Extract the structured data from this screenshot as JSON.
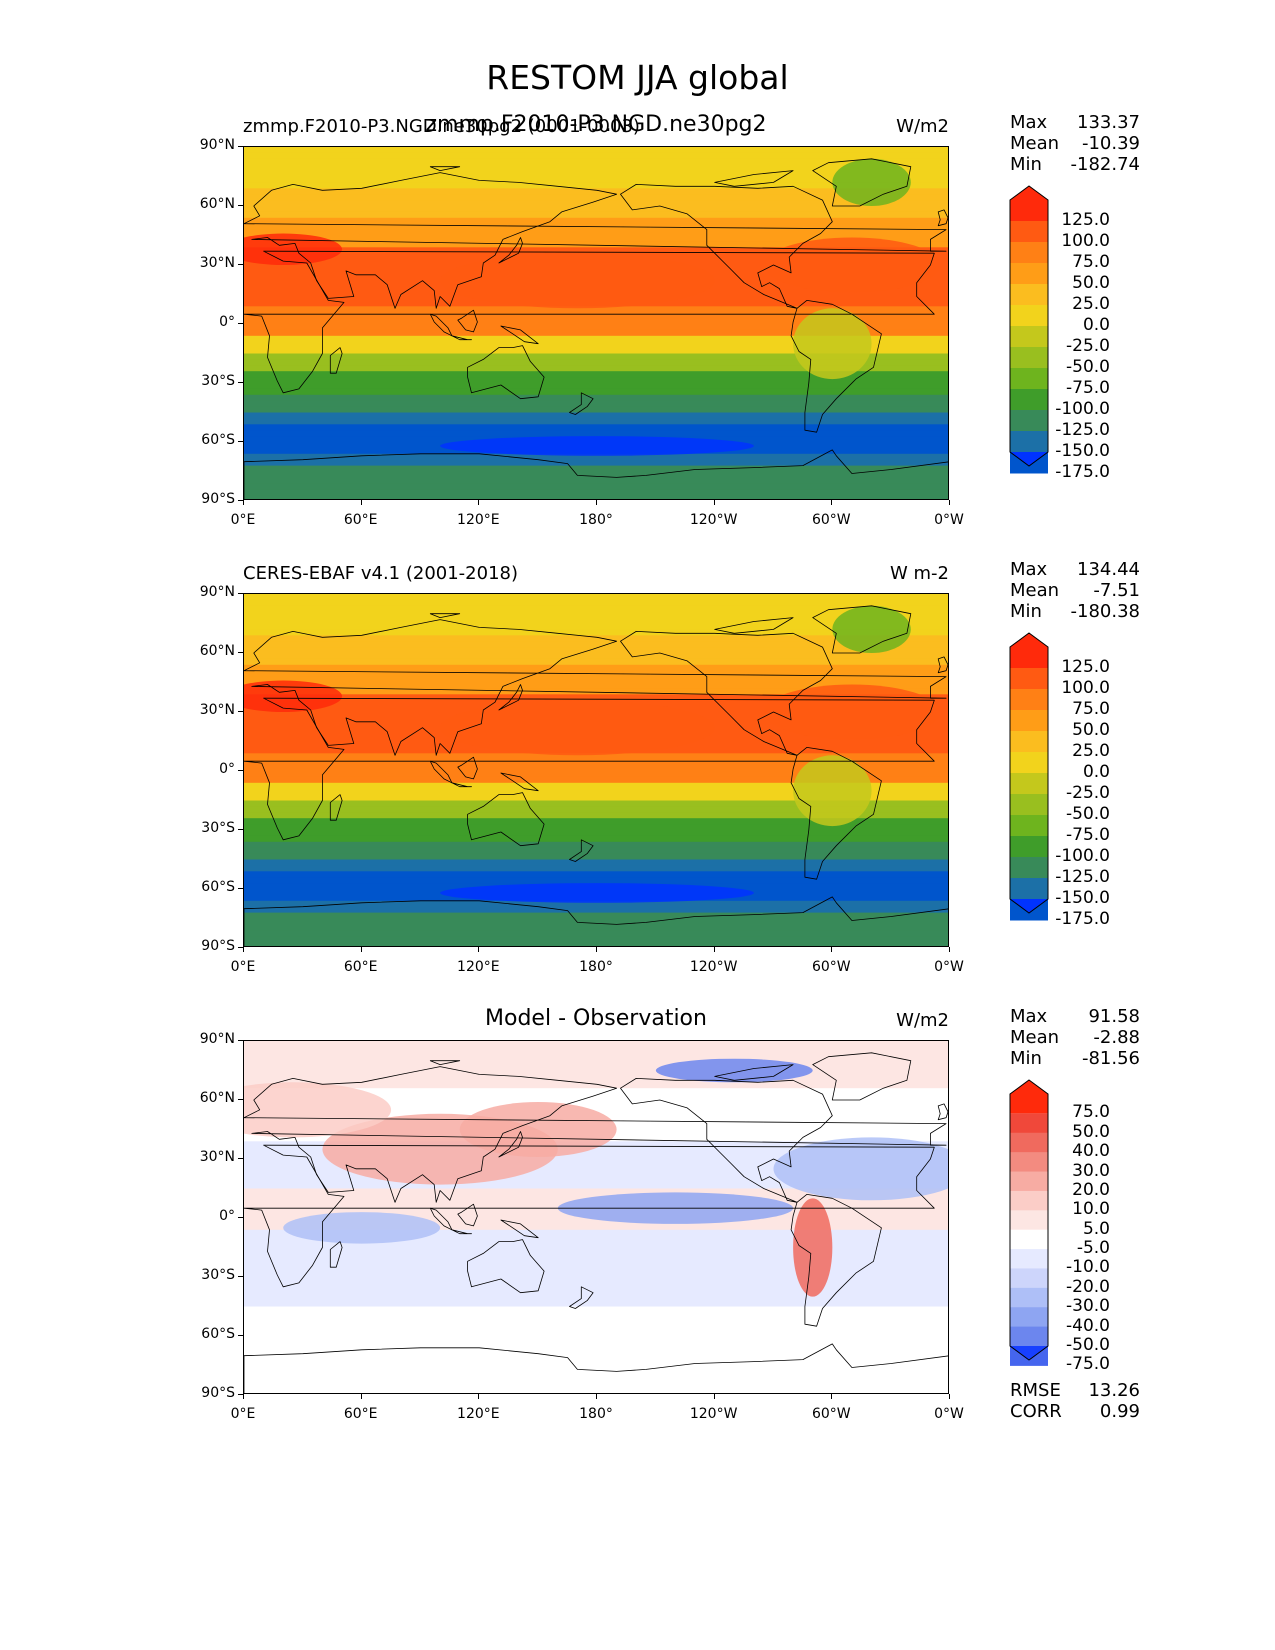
{
  "suptitle": "RESTOM JJA global",
  "panels": [
    {
      "id": "model",
      "title_left": "zmmp.F2010-P3.NGD.ne30pg2 (0001-0003)",
      "title_center": "zmmp.F2010-P3.NGD.ne30pg2",
      "units": "W/m2",
      "stats": [
        {
          "label": "Max",
          "value": "133.37"
        },
        {
          "label": "Mean",
          "value": "-10.39"
        },
        {
          "label": "Min",
          "value": "-182.74"
        }
      ],
      "levels": [
        "125.0",
        "100.0",
        "75.0",
        "50.0",
        "25.0",
        "0.0",
        "-25.0",
        "-50.0",
        "-75.0",
        "-100.0",
        "-125.0",
        "-150.0",
        "-175.0"
      ],
      "colors": [
        "#ff2a0b",
        "#ff5a12",
        "#ff8015",
        "#ff9d17",
        "#fbbd1f",
        "#f2d31c",
        "#c4c81c",
        "#99bf1f",
        "#6eb41e",
        "#3f9d2a",
        "#388a59",
        "#1c70a7",
        "#0055cc",
        "#0033ff"
      ],
      "extra_stats": []
    },
    {
      "id": "obs",
      "title_left": "CERES-EBAF v4.1 (2001-2018)",
      "title_center": "",
      "units": "W m-2",
      "stats": [
        {
          "label": "Max",
          "value": "134.44"
        },
        {
          "label": "Mean",
          "value": "-7.51"
        },
        {
          "label": "Min",
          "value": "-180.38"
        }
      ],
      "levels": [
        "125.0",
        "100.0",
        "75.0",
        "50.0",
        "25.0",
        "0.0",
        "-25.0",
        "-50.0",
        "-75.0",
        "-100.0",
        "-125.0",
        "-150.0",
        "-175.0"
      ],
      "colors": [
        "#ff2a0b",
        "#ff5a12",
        "#ff8015",
        "#ff9d17",
        "#fbbd1f",
        "#f2d31c",
        "#c4c81c",
        "#99bf1f",
        "#6eb41e",
        "#3f9d2a",
        "#388a59",
        "#1c70a7",
        "#0055cc",
        "#0033ff"
      ],
      "extra_stats": []
    },
    {
      "id": "diff",
      "title_left": "",
      "title_center": "Model - Observation",
      "units": "W/m2",
      "stats": [
        {
          "label": "Max",
          "value": "91.58"
        },
        {
          "label": "Mean",
          "value": "-2.88"
        },
        {
          "label": "Min",
          "value": "-81.56"
        }
      ],
      "levels": [
        "75.0",
        "50.0",
        "40.0",
        "30.0",
        "20.0",
        "10.0",
        "5.0",
        "-5.0",
        "-10.0",
        "-20.0",
        "-30.0",
        "-40.0",
        "-50.0",
        "-75.0"
      ],
      "colors": [
        "#ff2a0b",
        "#f0483a",
        "#f06a5e",
        "#f38b80",
        "#f7aca3",
        "#fbcdc7",
        "#fde6e3",
        "#ffffff",
        "#e6eaff",
        "#cdd5fb",
        "#aebff7",
        "#8ea5f2",
        "#6c86ee",
        "#4565ee",
        "#1840ff"
      ],
      "extra_stats": [
        {
          "label": "RMSE",
          "value": "13.26"
        },
        {
          "label": "CORR",
          "value": "0.99"
        }
      ]
    }
  ],
  "axes": {
    "y_ticks": [
      "90°N",
      "60°N",
      "30°N",
      "0°",
      "30°S",
      "60°S",
      "90°S"
    ],
    "x_ticks": [
      "0°E",
      "60°E",
      "120°E",
      "180°",
      "120°W",
      "60°W",
      "0°W"
    ]
  },
  "chart_data": [
    {
      "type": "heatmap",
      "title": "zmmp.F2010-P3.NGD.ne30pg2",
      "subtitle": "zmmp.F2010-P3.NGD.ne30pg2 (0001-0003)",
      "units": "W/m2",
      "x_range_lon": [
        0,
        360
      ],
      "y_range_lat": [
        -90,
        90
      ],
      "max": 133.37,
      "mean": -10.39,
      "min": -182.74,
      "contour_levels": [
        -175,
        -150,
        -125,
        -100,
        -75,
        -50,
        -25,
        0,
        25,
        50,
        75,
        100,
        125
      ]
    },
    {
      "type": "heatmap",
      "title": "CERES-EBAF v4.1 (2001-2018)",
      "units": "W m-2",
      "x_range_lon": [
        0,
        360
      ],
      "y_range_lat": [
        -90,
        90
      ],
      "max": 134.44,
      "mean": -7.51,
      "min": -180.38,
      "contour_levels": [
        -175,
        -150,
        -125,
        -100,
        -75,
        -50,
        -25,
        0,
        25,
        50,
        75,
        100,
        125
      ]
    },
    {
      "type": "heatmap",
      "title": "Model - Observation",
      "units": "W/m2",
      "x_range_lon": [
        0,
        360
      ],
      "y_range_lat": [
        -90,
        90
      ],
      "max": 91.58,
      "mean": -2.88,
      "min": -81.56,
      "rmse": 13.26,
      "corr": 0.99,
      "contour_levels": [
        -75,
        -50,
        -40,
        -30,
        -20,
        -10,
        -5,
        5,
        10,
        20,
        30,
        40,
        50,
        75
      ]
    }
  ]
}
